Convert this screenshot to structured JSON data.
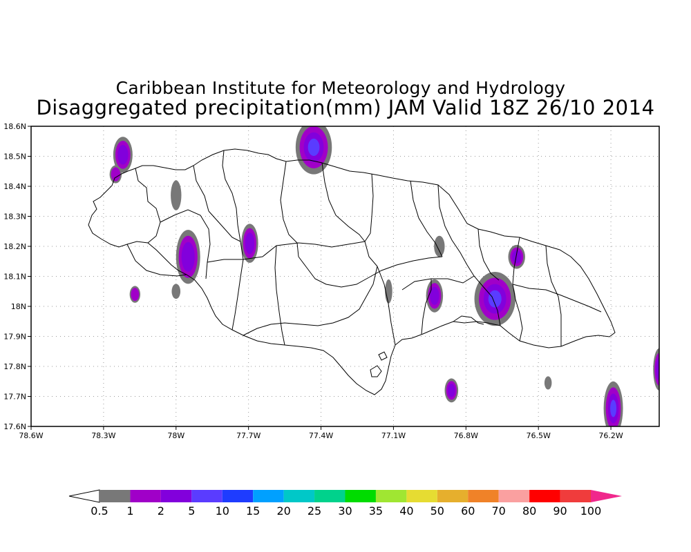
{
  "title_line1": "Caribbean Institute for Meteorology and Hydrology",
  "title_line2": "Disaggregated precipitation(mm) JAM Valid 18Z 26/10 2014",
  "map": {
    "lon_range": [
      -78.6,
      -76.0
    ],
    "lat_range": [
      17.6,
      18.6
    ],
    "x_ticks": [
      {
        "value": -78.6,
        "label": "78.6W"
      },
      {
        "value": -78.3,
        "label": "78.3W"
      },
      {
        "value": -78.0,
        "label": "78W"
      },
      {
        "value": -77.7,
        "label": "77.7W"
      },
      {
        "value": -77.4,
        "label": "77.4W"
      },
      {
        "value": -77.1,
        "label": "77.1W"
      },
      {
        "value": -76.8,
        "label": "76.8W"
      },
      {
        "value": -76.5,
        "label": "76.5W"
      },
      {
        "value": -76.2,
        "label": "76.2W"
      }
    ],
    "y_ticks": [
      {
        "value": 17.6,
        "label": "17.6N"
      },
      {
        "value": 17.7,
        "label": "17.7N"
      },
      {
        "value": 17.8,
        "label": "17.8N"
      },
      {
        "value": 17.9,
        "label": "17.9N"
      },
      {
        "value": 18.0,
        "label": "18N"
      },
      {
        "value": 18.1,
        "label": "18.1N"
      },
      {
        "value": 18.2,
        "label": "18.2N"
      },
      {
        "value": 18.3,
        "label": "18.3N"
      },
      {
        "value": 18.4,
        "label": "18.4N"
      },
      {
        "value": 18.5,
        "label": "18.5N"
      },
      {
        "value": 18.6,
        "label": "18.6N"
      }
    ],
    "grid": true,
    "colors": {
      "outline": "#000000",
      "grid": "#999999"
    }
  },
  "precip_cells": [
    {
      "lon": -78.22,
      "lat": 18.505,
      "rlon": 0.04,
      "rlat": 0.06,
      "max": 2
    },
    {
      "lon": -78.25,
      "lat": 18.44,
      "rlon": 0.025,
      "rlat": 0.03,
      "max": 1
    },
    {
      "lon": -78.0,
      "lat": 18.37,
      "rlon": 0.022,
      "rlat": 0.05,
      "max": 0.5
    },
    {
      "lon": -77.95,
      "lat": 18.165,
      "rlon": 0.05,
      "rlat": 0.09,
      "max": 2
    },
    {
      "lon": -78.0,
      "lat": 18.05,
      "rlon": 0.018,
      "rlat": 0.025,
      "max": 0.5
    },
    {
      "lon": -78.17,
      "lat": 18.04,
      "rlon": 0.022,
      "rlat": 0.028,
      "max": 1
    },
    {
      "lon": -77.695,
      "lat": 18.21,
      "rlon": 0.035,
      "rlat": 0.065,
      "max": 2
    },
    {
      "lon": -77.43,
      "lat": 18.53,
      "rlon": 0.075,
      "rlat": 0.09,
      "max": 5
    },
    {
      "lon": -77.12,
      "lat": 18.05,
      "rlon": 0.015,
      "rlat": 0.04,
      "max": 0.5
    },
    {
      "lon": -76.91,
      "lat": 18.2,
      "rlon": 0.022,
      "rlat": 0.035,
      "max": 0.5
    },
    {
      "lon": -76.93,
      "lat": 18.035,
      "rlon": 0.035,
      "rlat": 0.055,
      "max": 2
    },
    {
      "lon": -76.68,
      "lat": 18.025,
      "rlon": 0.085,
      "rlat": 0.09,
      "max": 5
    },
    {
      "lon": -76.59,
      "lat": 18.165,
      "rlon": 0.035,
      "rlat": 0.04,
      "max": 2
    },
    {
      "lon": -76.86,
      "lat": 17.72,
      "rlon": 0.028,
      "rlat": 0.04,
      "max": 2
    },
    {
      "lon": -76.46,
      "lat": 17.745,
      "rlon": 0.015,
      "rlat": 0.022,
      "max": 0.5
    },
    {
      "lon": -76.19,
      "lat": 17.66,
      "rlon": 0.04,
      "rlat": 0.09,
      "max": 5
    },
    {
      "lon": -76.0,
      "lat": 17.79,
      "rlon": 0.025,
      "rlat": 0.07,
      "max": 2
    }
  ],
  "legend": {
    "labels": [
      "0.5",
      "1",
      "2",
      "5",
      "10",
      "15",
      "20",
      "25",
      "30",
      "35",
      "40",
      "50",
      "60",
      "70",
      "80",
      "90",
      "100"
    ],
    "colors": [
      "#ffffff",
      "#787878",
      "#a000c8",
      "#8200dc",
      "#5a3cff",
      "#1e3cff",
      "#00a0ff",
      "#00c8c8",
      "#00d28c",
      "#00dc00",
      "#a0e632",
      "#e6dc32",
      "#e6af2d",
      "#f08228",
      "#faa0a0",
      "#ff0000",
      "#f03c3c",
      "#f0288c"
    ]
  }
}
